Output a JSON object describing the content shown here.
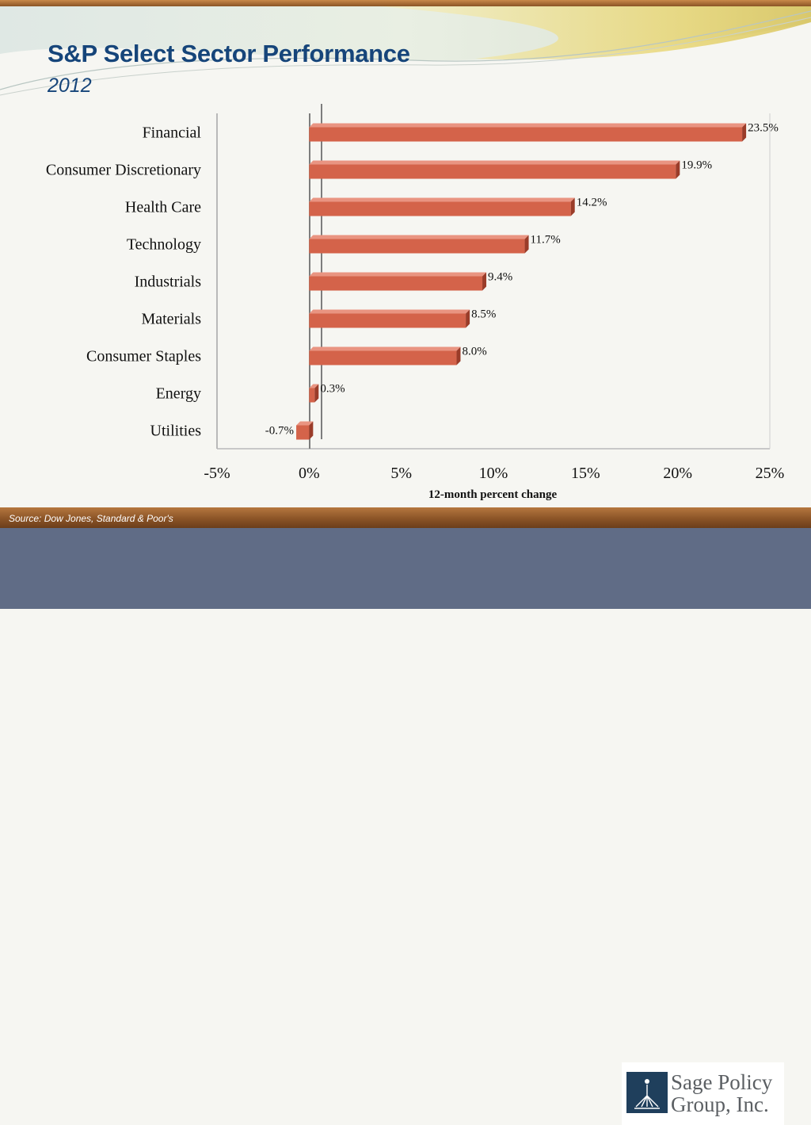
{
  "slide": {
    "title": "S&P Select Sector Performance",
    "subtitle": "2012",
    "source": "Source: Dow Jones, Standard & Poor's",
    "logo": {
      "line1": "Sage Policy",
      "line2": "Group, Inc."
    }
  },
  "colors": {
    "bar": "#d4634a",
    "bar_top": "#e99481",
    "bar_side": "#9a3c29",
    "title": "#16457a",
    "footer": "#606c86",
    "band": "#8b5427"
  },
  "chart_data": {
    "type": "bar",
    "orientation": "horizontal",
    "categories": [
      "Financial",
      "Consumer Discretionary",
      "Health Care",
      "Technology",
      "Industrials",
      "Materials",
      "Consumer Staples",
      "Energy",
      "Utilities"
    ],
    "values": [
      23.5,
      19.9,
      14.2,
      11.7,
      9.4,
      8.5,
      8.0,
      0.3,
      -0.7
    ],
    "data_labels": [
      "23.5%",
      "19.9%",
      "14.2%",
      "11.7%",
      "9.4%",
      "8.5%",
      "8.0%",
      "0.3%",
      "-0.7%"
    ],
    "xlim": [
      -5,
      25
    ],
    "x_ticks": [
      -5,
      0,
      5,
      10,
      15,
      20,
      25
    ],
    "x_tick_labels": [
      "-5%",
      "0%",
      "5%",
      "10%",
      "15%",
      "20%",
      "25%"
    ],
    "xlabel": "12-month percent change",
    "grid": false,
    "legend": "none"
  }
}
